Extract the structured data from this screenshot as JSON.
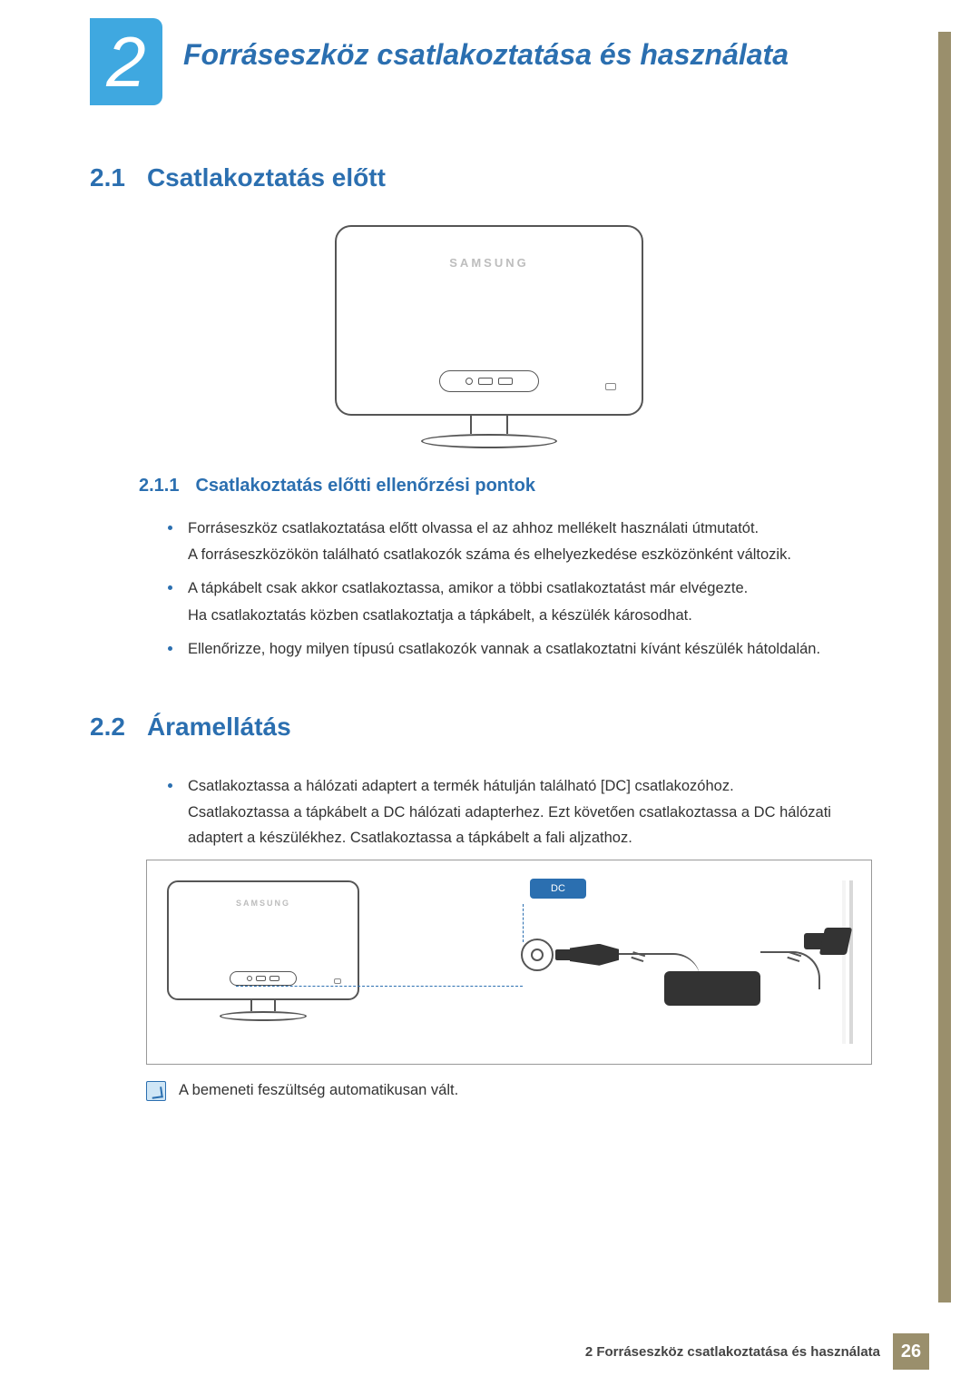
{
  "chapter": {
    "number": "2",
    "title": "Forráseszköz csatlakoztatása és használata"
  },
  "section_2_1": {
    "num": "2.1",
    "title": "Csatlakoztatás előtt",
    "figure": {
      "brand": "SAMSUNG"
    },
    "sub_2_1_1": {
      "num": "2.1.1",
      "title": "Csatlakoztatás előtti ellenőrzési pontok",
      "bullets": [
        {
          "line1": "Forráseszköz csatlakoztatása előtt olvassa el az ahhoz mellékelt használati útmutatót.",
          "line2": "A forráseszközökön található csatlakozók száma és elhelyezkedése eszközönként változik."
        },
        {
          "line1": "A tápkábelt csak akkor csatlakoztassa, amikor a többi csatlakoztatást már elvégezte.",
          "line2": "Ha csatlakoztatás közben csatlakoztatja a tápkábelt, a készülék károsodhat."
        },
        {
          "line1": "Ellenőrizze, hogy milyen típusú csatlakozók vannak a csatlakoztatni kívánt készülék hátoldalán."
        }
      ]
    }
  },
  "section_2_2": {
    "num": "2.2",
    "title": "Áramellátás",
    "bullets": [
      {
        "line1": "Csatlakoztassa a hálózati adaptert a termék hátulján található [DC] csatlakozóhoz.",
        "line2": "Csatlakoztassa a tápkábelt a DC hálózati adapterhez. Ezt követően csatlakoztassa a DC hálózati adaptert a készülékhez. Csatlakoztassa a tápkábelt a fali aljzathoz."
      }
    ],
    "figure": {
      "brand": "SAMSUNG",
      "dc_label": "DC"
    },
    "note": "A bemeneti feszültség automatikusan vált."
  },
  "footer": {
    "text": "2 Forráseszköz csatlakoztatása és használata",
    "page": "26"
  },
  "colors": {
    "accent_blue": "#2b6fb0",
    "badge_blue": "#3fa8e0",
    "side_rule": "#9a8f6c",
    "text": "#333333"
  }
}
